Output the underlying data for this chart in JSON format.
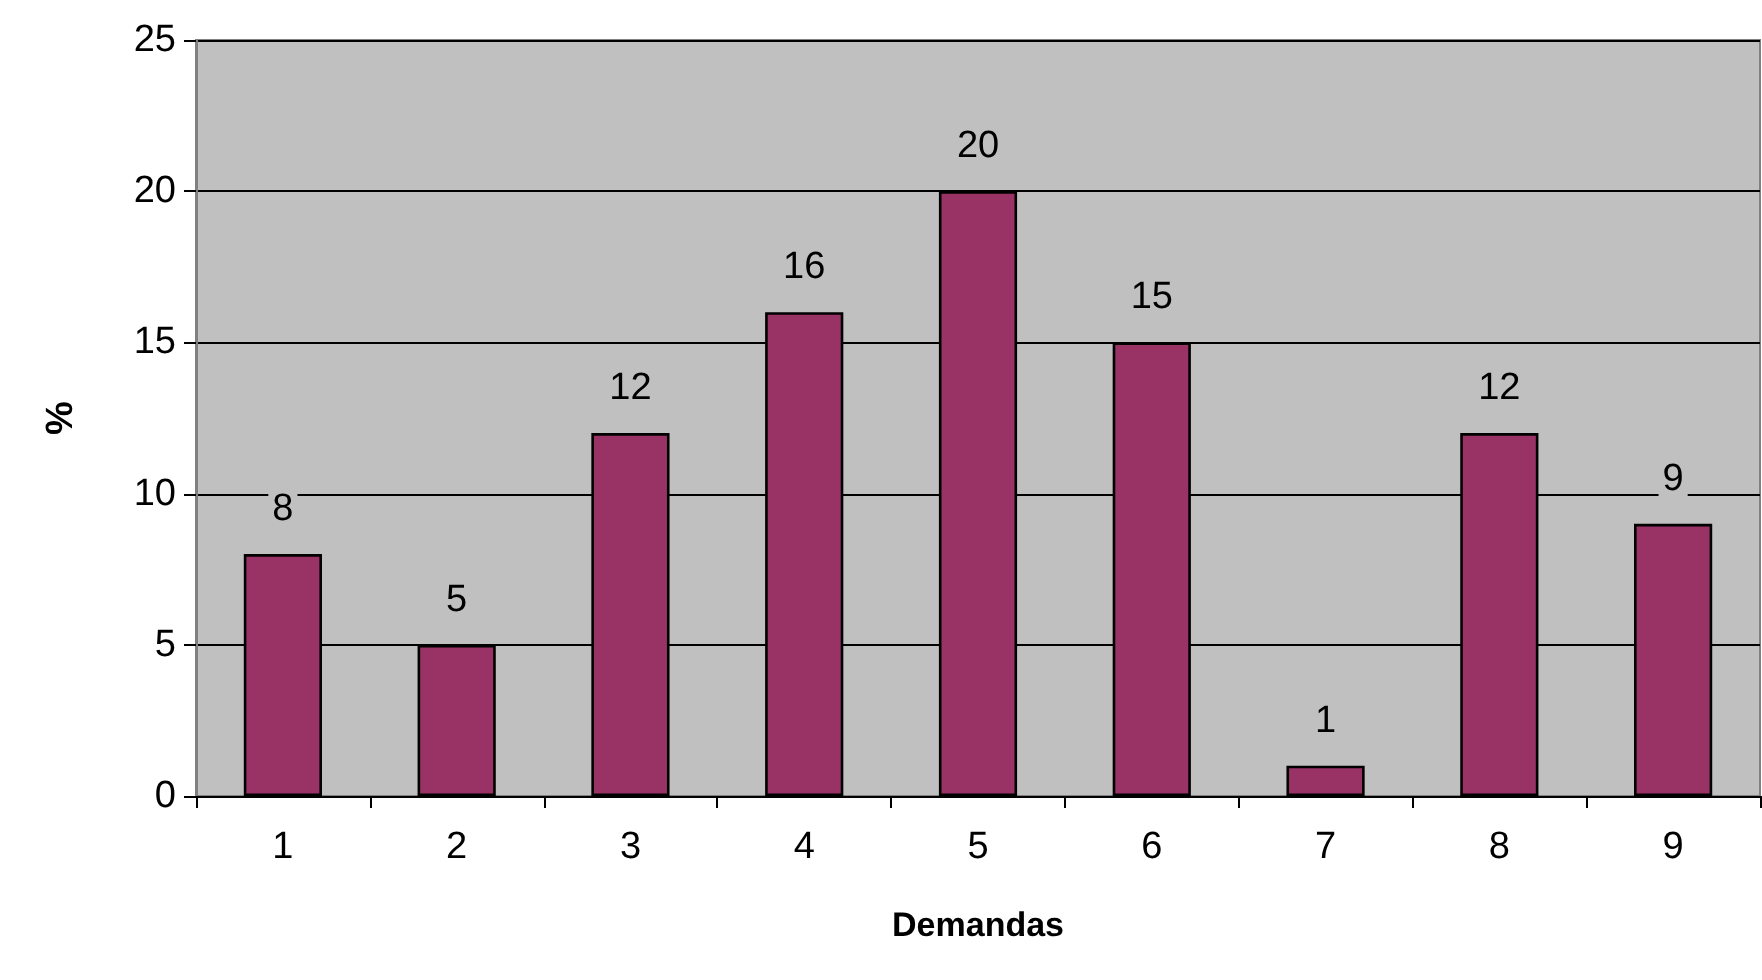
{
  "chart_data": {
    "type": "bar",
    "xlabel": "Demandas",
    "ylabel": "%",
    "categories": [
      "1",
      "2",
      "3",
      "4",
      "5",
      "6",
      "7",
      "8",
      "9"
    ],
    "values": [
      8,
      5,
      12,
      16,
      20,
      15,
      1,
      12,
      9
    ],
    "color": "#993366",
    "ylim": [
      0,
      25
    ],
    "yticks": [
      0,
      5,
      10,
      15,
      20,
      25
    ],
    "grid": "y",
    "data_labels": true
  }
}
